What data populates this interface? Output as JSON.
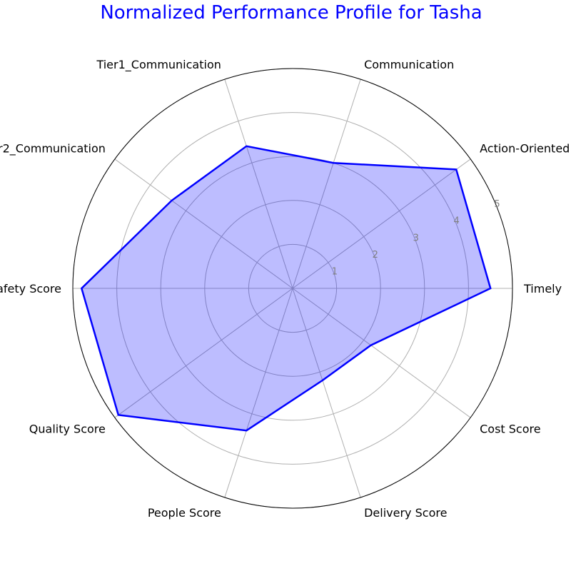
{
  "chart_data": {
    "type": "radar",
    "title": "Normalized Performance Profile for Tasha",
    "axes": [
      "Timely",
      "Action-Oriented",
      "Communication",
      "Tier1_Communication",
      "Tier2_Communication",
      "Safety Score",
      "Quality Score",
      "People Score",
      "Delivery Score",
      "Cost Score"
    ],
    "values": [
      4.5,
      4.6,
      3.0,
      3.4,
      3.4,
      4.8,
      4.9,
      3.4,
      2.2,
      2.2
    ],
    "r_ticks": [
      "1",
      "2",
      "3",
      "4",
      "5"
    ],
    "r_max": 5,
    "grid": true,
    "colors": {
      "title": "#0000ff",
      "line": "#0000ff",
      "fill": "#0000ff",
      "grid": "#b0b0b0",
      "tick": "#808080"
    }
  }
}
